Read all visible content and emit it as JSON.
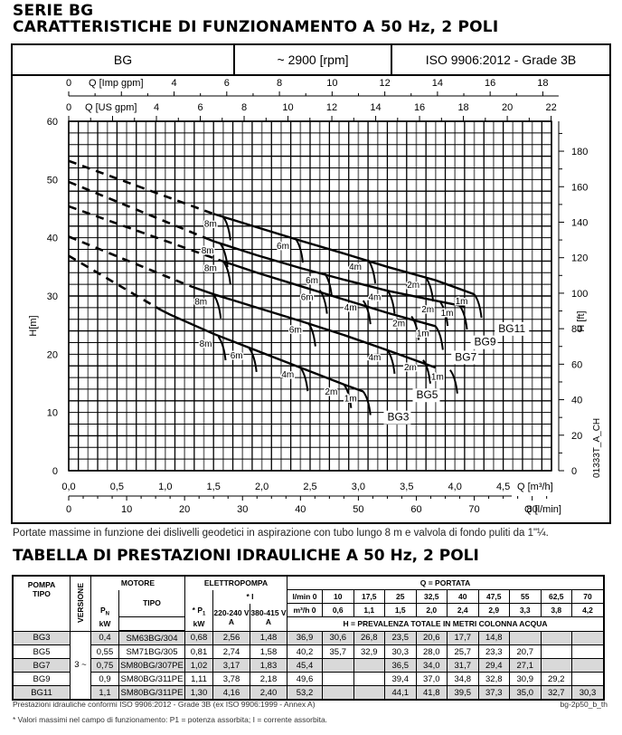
{
  "titles": {
    "series": "SERIE BG",
    "chart_title": "CARATTERISTICHE DI FUNZIONAMENTO A 50 Hz, 2 POLI",
    "table_title": "TABELLA DI PRESTAZIONI IDRAULICHE A 50 Hz, 2 POLI"
  },
  "chart_header": {
    "model": "BG",
    "speed": "~ 2900 [rpm]",
    "standard": "ISO 9906:2012 - Grade 3B"
  },
  "chart_note": "Portate massime in funzione dei dislivelli geodetici in aspirazione con tubo lungo 8 m e valvola di fondo puliti da 1\"¼.",
  "chart_code": "01333T_A_CH",
  "chart_data": {
    "type": "line",
    "title": "CARATTERISTICHE DI FUNZIONAMENTO A 50 Hz, 2 POLI",
    "xlabel": "Q [m³/h]",
    "ylabel": "H[m]",
    "ylabel_right": "H [ft]",
    "xlim": [
      0,
      5.0
    ],
    "ylim": [
      0,
      60
    ],
    "grid": true,
    "axes": {
      "q_m3h_ticks": [
        "0,0",
        "0,5",
        "1,0",
        "1,5",
        "2,0",
        "2,5",
        "3,0",
        "3,5",
        "4,0",
        "4,5"
      ],
      "q_lmin_ticks": [
        "0",
        "10",
        "20",
        "30",
        "40",
        "50",
        "60",
        "70",
        "80"
      ],
      "q_lmin_label": "Q [l/min]",
      "q_imp_ticks": [
        "0",
        "4",
        "6",
        "8",
        "10",
        "12",
        "14",
        "16",
        "18"
      ],
      "q_imp_label": "Q [Imp gpm]",
      "q_us_ticks": [
        "0",
        "4",
        "6",
        "8",
        "10",
        "12",
        "14",
        "16",
        "18",
        "20",
        "22"
      ],
      "q_us_label": "Q [US gpm]",
      "h_m_ticks": [
        "0",
        "10",
        "20",
        "30",
        "40",
        "50",
        "60"
      ],
      "h_ft_ticks": [
        "0",
        "20",
        "40",
        "60",
        "80",
        "100",
        "120",
        "140",
        "160",
        "180"
      ]
    },
    "series": [
      {
        "name": "BG3",
        "dashed_to": 0.95,
        "points": [
          [
            0,
            36.9
          ],
          [
            0.6,
            30.6
          ],
          [
            1.05,
            26.8
          ],
          [
            1.5,
            23.5
          ],
          [
            1.95,
            20.6
          ],
          [
            2.4,
            17.7
          ],
          [
            2.85,
            14.8
          ],
          [
            3.05,
            13.6
          ]
        ],
        "drops": [
          {
            "label": "8m",
            "q": 1.55,
            "h": 23.0
          },
          {
            "label": "6m",
            "q": 1.87,
            "h": 21.0
          },
          {
            "label": "4m",
            "q": 2.4,
            "h": 17.7
          },
          {
            "label": "2m",
            "q": 2.85,
            "h": 14.8
          },
          {
            "label": "1m",
            "q": 3.05,
            "h": 13.6
          }
        ],
        "end_label_pos": [
          3.3,
          8.6
        ]
      },
      {
        "name": "BG5",
        "dashed_to": 1.25,
        "points": [
          [
            0,
            40.2
          ],
          [
            0.6,
            35.7
          ],
          [
            1.05,
            32.9
          ],
          [
            1.5,
            30.3
          ],
          [
            1.95,
            28.0
          ],
          [
            2.4,
            25.7
          ],
          [
            2.85,
            23.3
          ],
          [
            3.3,
            20.7
          ],
          [
            3.8,
            17.7
          ]
        ],
        "drops": [
          {
            "label": "8m",
            "q": 1.5,
            "h": 30.2
          },
          {
            "label": "6m",
            "q": 2.48,
            "h": 25.4
          },
          {
            "label": "4m",
            "q": 3.3,
            "h": 20.7
          },
          {
            "label": "2m",
            "q": 3.67,
            "h": 19.0
          },
          {
            "label": "1m",
            "q": 3.95,
            "h": 17.3
          }
        ],
        "end_label_pos": [
          3.6,
          12.4
        ]
      },
      {
        "name": "BG7",
        "dashed_to": 1.55,
        "points": [
          [
            0,
            45.4
          ],
          [
            1.5,
            36.5
          ],
          [
            1.95,
            34.0
          ],
          [
            2.4,
            31.7
          ],
          [
            2.85,
            29.4
          ],
          [
            3.3,
            27.1
          ],
          [
            3.8,
            24.8
          ]
        ],
        "drops": [
          {
            "label": "8m",
            "q": 1.6,
            "h": 36.0
          },
          {
            "label": "6m",
            "q": 2.6,
            "h": 31.0
          },
          {
            "label": "4m",
            "q": 3.05,
            "h": 29.2
          },
          {
            "label": "2m",
            "q": 3.55,
            "h": 26.5
          },
          {
            "label": "1m",
            "q": 3.8,
            "h": 24.8
          }
        ],
        "end_label_pos": [
          4.0,
          18.9
        ]
      },
      {
        "name": "BG9",
        "dashed_to": 1.45,
        "points": [
          [
            0,
            49.6
          ],
          [
            1.5,
            39.4
          ],
          [
            1.95,
            37.0
          ],
          [
            2.4,
            34.8
          ],
          [
            2.85,
            32.8
          ],
          [
            3.3,
            30.9
          ],
          [
            3.8,
            29.2
          ],
          [
            4.1,
            28.2
          ]
        ],
        "drops": [
          {
            "label": "8m",
            "q": 1.57,
            "h": 39.0
          },
          {
            "label": "6m",
            "q": 2.65,
            "h": 33.9
          },
          {
            "label": "4m",
            "q": 3.3,
            "h": 31.0
          },
          {
            "label": "2m",
            "q": 3.85,
            "h": 28.9
          },
          {
            "label": "1m",
            "q": 4.05,
            "h": 28.3
          }
        ],
        "end_label_pos": [
          4.2,
          21.5
        ]
      },
      {
        "name": "BG11",
        "dashed_to": 1.5,
        "points": [
          [
            0,
            53.2
          ],
          [
            1.5,
            44.1
          ],
          [
            1.95,
            41.8
          ],
          [
            2.4,
            39.5
          ],
          [
            2.85,
            37.3
          ],
          [
            3.3,
            35.0
          ],
          [
            3.8,
            32.7
          ],
          [
            4.2,
            30.3
          ]
        ],
        "drops": [
          {
            "label": "8m",
            "q": 1.6,
            "h": 43.6
          },
          {
            "label": "6m",
            "q": 2.35,
            "h": 39.8
          },
          {
            "label": "4m",
            "q": 3.1,
            "h": 36.2
          },
          {
            "label": "2m",
            "q": 3.7,
            "h": 33.1
          },
          {
            "label": "1m",
            "q": 4.2,
            "h": 30.3
          }
        ],
        "end_label_pos": [
          4.45,
          23.8
        ]
      }
    ]
  },
  "table": {
    "headers": {
      "pompa": "POMPA",
      "tipo": "TIPO",
      "versione": "VERSIONE",
      "motore": "MOTORE",
      "pn": "P",
      "pn_sub": "N",
      "kw": "kW",
      "motore_tipo": "TIPO",
      "elettropompa": "ELETTROPOMPA",
      "i_label": "* I",
      "p1": "* P",
      "p1_sub": "1",
      "v1": "220-240 V",
      "v2": "380-415 V",
      "a": "A",
      "portata": "Q = PORTATA",
      "lmin_label": "l/min 0",
      "m3h_label": "m³/h 0",
      "prevalenza": "H = PREVALENZA TOTALE IN METRI COLONNA ACQUA"
    },
    "q_lmin": [
      "10",
      "17,5",
      "25",
      "32,5",
      "40",
      "47,5",
      "55",
      "62,5",
      "70"
    ],
    "q_m3h": [
      "0,6",
      "1,1",
      "1,5",
      "2,0",
      "2,4",
      "2,9",
      "3,3",
      "3,8",
      "4,2"
    ],
    "version": "3 ~",
    "rows": [
      {
        "pump": "BG3",
        "pn": "0,4",
        "motor": "SM63BG/304",
        "p1": "0,68",
        "i1": "2,56",
        "i2": "1,48",
        "h0": "36,9",
        "h": [
          "30,6",
          "26,8",
          "23,5",
          "20,6",
          "17,7",
          "14,8",
          "",
          "",
          ""
        ]
      },
      {
        "pump": "BG5",
        "pn": "0,55",
        "motor": "SM71BG/305",
        "p1": "0,81",
        "i1": "2,74",
        "i2": "1,58",
        "h0": "40,2",
        "h": [
          "35,7",
          "32,9",
          "30,3",
          "28,0",
          "25,7",
          "23,3",
          "20,7",
          "",
          ""
        ]
      },
      {
        "pump": "BG7",
        "pn": "0,75",
        "motor": "SM80BG/307PE",
        "p1": "1,02",
        "i1": "3,17",
        "i2": "1,83",
        "h0": "45,4",
        "h": [
          "",
          "",
          "36,5",
          "34,0",
          "31,7",
          "29,4",
          "27,1",
          "",
          ""
        ]
      },
      {
        "pump": "BG9",
        "pn": "0,9",
        "motor": "SM80BG/311PE",
        "p1": "1,11",
        "i1": "3,78",
        "i2": "2,18",
        "h0": "49,6",
        "h": [
          "",
          "",
          "39,4",
          "37,0",
          "34,8",
          "32,8",
          "30,9",
          "29,2",
          ""
        ]
      },
      {
        "pump": "BG11",
        "pn": "1,1",
        "motor": "SM80BG/311PE",
        "p1": "1,30",
        "i1": "4,16",
        "i2": "2,40",
        "h0": "53,2",
        "h": [
          "",
          "",
          "44,1",
          "41,8",
          "39,5",
          "37,3",
          "35,0",
          "32,7",
          "30,3"
        ]
      }
    ],
    "footnote1": "Prestazioni idrauliche conformi ISO 9906:2012 - Grade 3B (ex ISO 9906:1999 - Annex A)",
    "footnote2": "* Valori massimi nel campo di funzionamento: P1 = potenza assorbita; I = corrente assorbita.",
    "code": "bg-2p50_b_th"
  },
  "colors": {
    "row_shade": "#d9d9d9",
    "grid_major": "#000000",
    "grid_minor": "#777777"
  }
}
